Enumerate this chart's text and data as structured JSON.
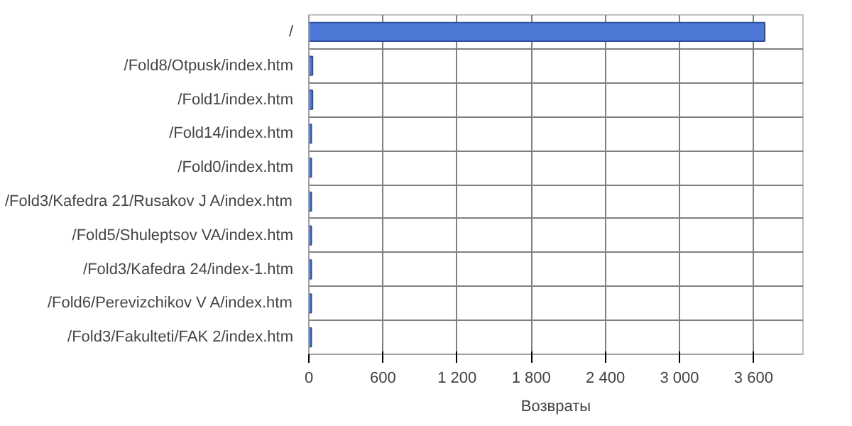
{
  "chart_data": {
    "type": "bar",
    "orientation": "horizontal",
    "xlabel": "Возвраты",
    "categories": [
      "/",
      "/Fold8/Otpusk/index.htm",
      "/Fold1/index.htm",
      "/Fold14/index.htm",
      "/Fold0/index.htm",
      "/Fold3/Kafedra 21/Rusakov J A/index.htm",
      "/Fold5/Shuleptsov VA/index.htm",
      "/Fold3/Kafedra 24/index-1.htm",
      "/Fold6/Perevizchikov V A/index.htm",
      "/Fold3/Fakulteti/FAK 2/index.htm"
    ],
    "values": [
      3690,
      30,
      30,
      20,
      20,
      20,
      20,
      20,
      20,
      20
    ],
    "color": "#4f79d6",
    "xlim": [
      0,
      4000
    ],
    "xticks": [
      0,
      {
        "value": 600,
        "label": "600"
      },
      {
        "value": 1200,
        "label": "1 200"
      },
      {
        "value": 1800,
        "label": "1 800"
      },
      {
        "value": 2400,
        "label": "2 400"
      },
      {
        "value": 3000,
        "label": "3 000"
      },
      {
        "value": 3600,
        "label": "3 600"
      }
    ],
    "grid": true
  }
}
